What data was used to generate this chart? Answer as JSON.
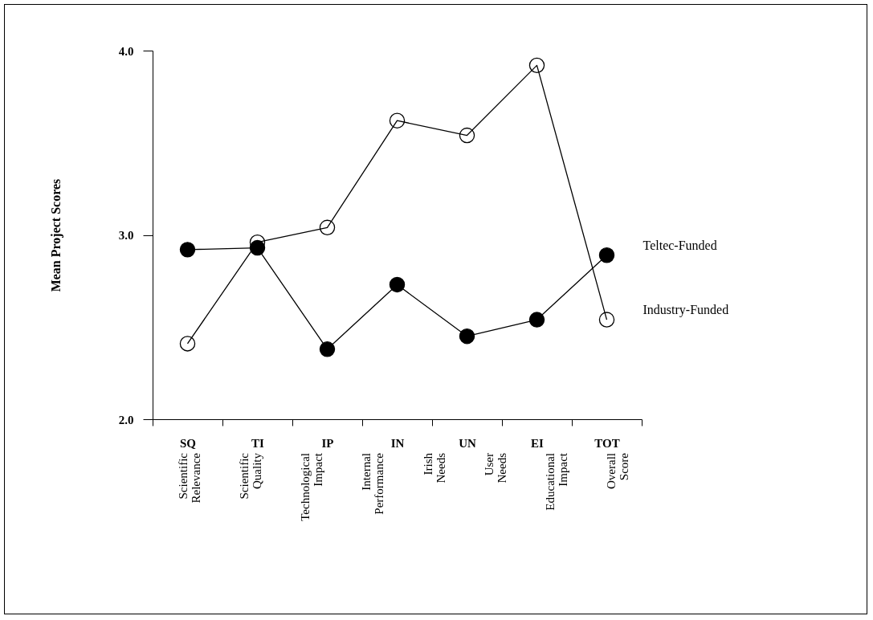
{
  "chart_data": {
    "type": "line",
    "ylabel": "Mean Project Scores",
    "categories": [
      "SQ",
      "TI",
      "IP",
      "IN",
      "UN",
      "EI",
      "TOT"
    ],
    "series": [
      {
        "name": "Teltec-Funded",
        "color": "#000000",
        "values": [
          2.92,
          2.93,
          2.38,
          2.73,
          2.45,
          2.54,
          2.89
        ]
      },
      {
        "name": "Industry-Funded",
        "color": "#000000",
        "values": [
          2.41,
          2.96,
          3.04,
          3.62,
          3.54,
          3.92,
          2.54
        ]
      }
    ],
    "ylim": [
      2.0,
      4.0
    ],
    "yticks": [
      {
        "value": 2,
        "label": "2.0"
      },
      {
        "value": 3,
        "label": "3.0"
      },
      {
        "value": 4,
        "label": "4.0"
      }
    ],
    "grid": false,
    "legend": "right",
    "marker": "circle",
    "line_style": "solid",
    "annotations": [
      "Scientific Relevance",
      "Scientific Quality",
      "Technological Impact",
      "Internal Performance",
      "Irish Needs",
      "User Needs",
      "Educational Impact",
      "Overall Score"
    ]
  }
}
